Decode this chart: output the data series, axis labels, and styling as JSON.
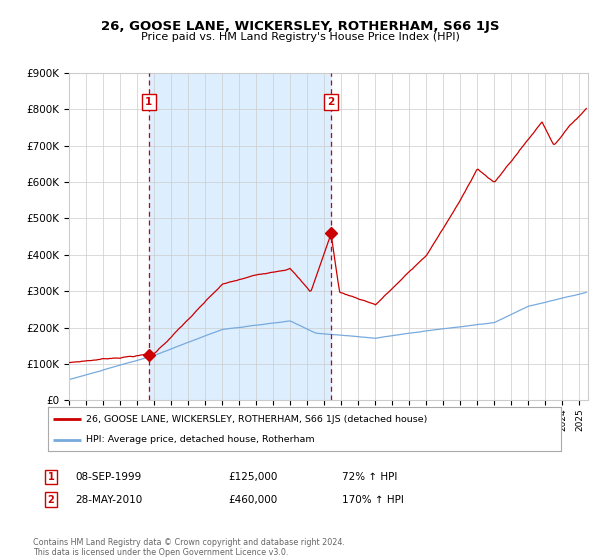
{
  "title": "26, GOOSE LANE, WICKERSLEY, ROTHERHAM, S66 1JS",
  "subtitle": "Price paid vs. HM Land Registry's House Price Index (HPI)",
  "legend_line1": "26, GOOSE LANE, WICKERSLEY, ROTHERHAM, S66 1JS (detached house)",
  "legend_line2": "HPI: Average price, detached house, Rotherham",
  "annotation1_label": "1",
  "annotation1_date": "08-SEP-1999",
  "annotation1_price": "£125,000",
  "annotation1_hpi": "72% ↑ HPI",
  "annotation2_label": "2",
  "annotation2_date": "28-MAY-2010",
  "annotation2_price": "£460,000",
  "annotation2_hpi": "170% ↑ HPI",
  "footer": "Contains HM Land Registry data © Crown copyright and database right 2024.\nThis data is licensed under the Open Government Licence v3.0.",
  "red_color": "#cc0000",
  "blue_color": "#77aadd",
  "bg_shade_color": "#ddeeff",
  "grid_color": "#cccccc",
  "purchase1_year": 1999.69,
  "purchase1_value": 125000,
  "purchase2_year": 2010.4,
  "purchase2_value": 460000,
  "ylim": [
    0,
    900000
  ],
  "xlim_start": 1995.0,
  "xlim_end": 2025.5
}
